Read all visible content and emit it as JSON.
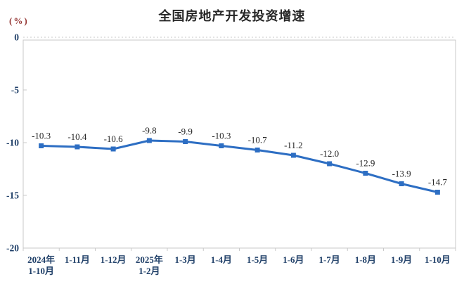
{
  "header": {
    "title": "全国房地产开发投资增速",
    "unit_label": "(%)"
  },
  "chart_data": {
    "type": "line",
    "title": "全国房地产开发投资增速",
    "ylabel": "(%)",
    "xlabel": "",
    "categories": [
      "2024年\n1-10月",
      "1-11月",
      "1-12月",
      "2025年\n1-2月",
      "1-3月",
      "1-4月",
      "1-5月",
      "1-6月",
      "1-7月",
      "1-8月",
      "1-9月",
      "1-10月"
    ],
    "values": [
      -10.3,
      -10.4,
      -10.6,
      -9.8,
      -9.9,
      -10.3,
      -10.7,
      -11.2,
      -12.0,
      -12.9,
      -13.9,
      -14.7
    ],
    "data_labels": [
      "-10.3",
      "-10.4",
      "-10.6",
      "-9.8",
      "-9.9",
      "-10.3",
      "-10.7",
      "-11.2",
      "-12.0",
      "-12.9",
      "-13.9",
      "-14.7"
    ],
    "ylim": [
      -20,
      0
    ],
    "yticks": [
      0,
      -5,
      -10,
      -15,
      -20
    ],
    "legend": "none",
    "grid": "dashed-zero-line",
    "marker": "square",
    "colors": {
      "line": "#2D6EC3",
      "marker": "#2D6EC3",
      "data_label": "#262626",
      "axis_text": "#1F3F68",
      "unit_label": "#943634",
      "axis_line": "#C9C9C9",
      "title": "#262626"
    }
  }
}
